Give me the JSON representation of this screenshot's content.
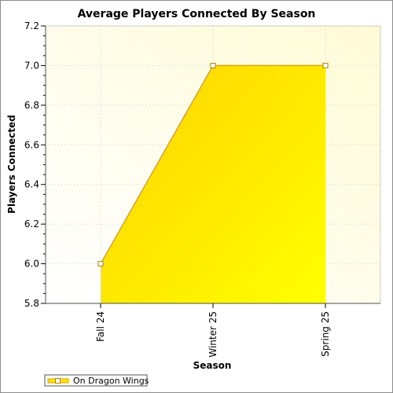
{
  "chart_data": {
    "type": "area",
    "title": "Average Players Connected By Season",
    "xlabel": "Season",
    "ylabel": "Players Connected",
    "categories": [
      "Fall 24",
      "Winter 25",
      "Spring 25"
    ],
    "series": [
      {
        "name": "On Dragon Wings",
        "values": [
          6.0,
          7.0,
          7.0
        ],
        "color": "#ffe600"
      }
    ],
    "ylim": [
      5.8,
      7.2
    ],
    "yticks": [
      "5.8",
      "6.0",
      "6.2",
      "6.4",
      "6.6",
      "6.8",
      "7.0",
      "7.2"
    ],
    "grid": true,
    "legend": "bottom-left",
    "colors": {
      "plot_background": "#fffde0",
      "area_top": "#ffd700",
      "area_bottom": "#ffff00",
      "line": "#e0a800",
      "grid": "#c8c8c8"
    }
  }
}
